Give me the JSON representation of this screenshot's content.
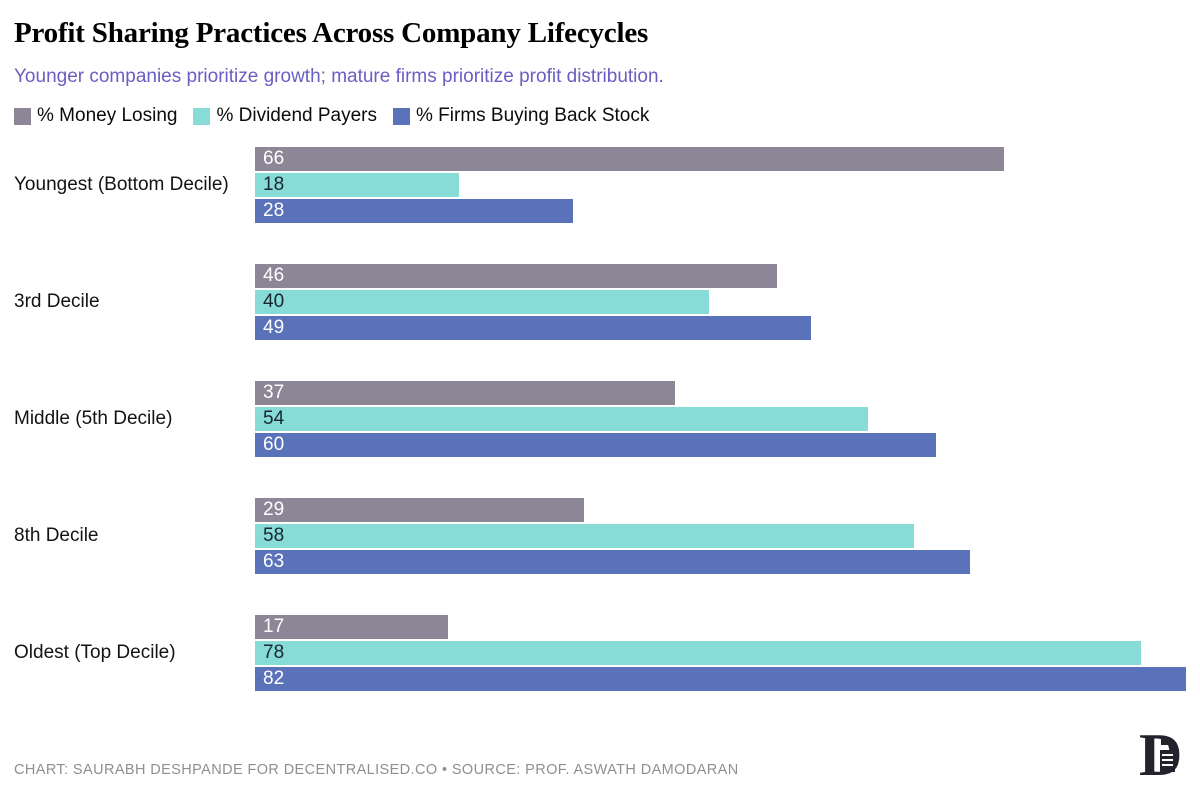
{
  "header": {
    "title": "Profit Sharing Practices Across Company Lifecycles",
    "subtitle": "Younger companies prioritize growth; mature firms prioritize profit distribution."
  },
  "footer": {
    "credit": "CHART: SAURABH DESHPANDE FOR DECENTRALISED.CO • SOURCE: PROF. ASWATH DAMODARAN"
  },
  "logo": {
    "letter": "D",
    "color": "#23232e"
  },
  "colors": {
    "background": "#ffffff",
    "title": "#000000",
    "subtitle": "#6a5ec2",
    "footer_text": "#8f8f93",
    "category_label": "#131313"
  },
  "chart_data": {
    "type": "bar",
    "orientation": "horizontal",
    "title": "Profit Sharing Practices Across Company Lifecycles",
    "subtitle": "Younger companies prioritize growth; mature firms prioritize profit distribution.",
    "categories": [
      "Youngest (Bottom Decile)",
      "3rd Decile",
      "Middle (5th Decile)",
      "8th Decile",
      "Oldest (Top Decile)"
    ],
    "series": [
      {
        "name": "% Money Losing",
        "color": "#8c8696",
        "label_color": "#ffffff",
        "values": [
          66,
          46,
          37,
          29,
          17
        ]
      },
      {
        "name": "% Dividend Payers",
        "color": "#87dcd8",
        "label_color": "#1a2531",
        "values": [
          18,
          40,
          54,
          58,
          78
        ]
      },
      {
        "name": "% Firms Buying Back Stock",
        "color": "#5a72b9",
        "label_color": "#ffffff",
        "values": [
          28,
          49,
          60,
          63,
          82
        ]
      }
    ],
    "xlim": [
      0,
      82
    ],
    "xlabel": "",
    "ylabel": "",
    "value_labels": "inside-start",
    "legend_position": "top",
    "axes_hidden": true,
    "grid": false
  }
}
